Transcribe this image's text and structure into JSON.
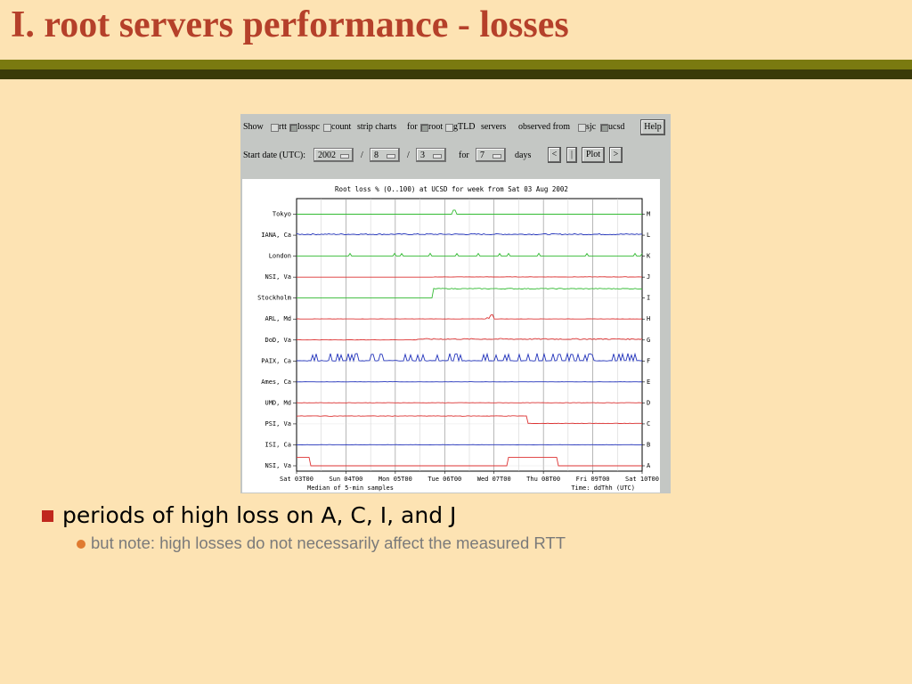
{
  "slide": {
    "title": "I. root servers performance - losses",
    "bullet1": "periods of high loss on A, C, I, and J",
    "bullet2": "but note: high losses do not necessarily affect the measured RTT"
  },
  "toolbar": {
    "show_label": "Show",
    "rtt_label": "rtt",
    "losspc_label": "losspc",
    "count_label": "count",
    "strip_label": "strip charts",
    "for_label": "for",
    "root_label": "root",
    "gtld_label": "gTLD",
    "servers_label": "servers",
    "observed_label": "observed from",
    "sjc_label": "sjc",
    "ucsd_label": "ucsd",
    "help_label": "Help",
    "start_label": "Start date (UTC):",
    "year": "2002",
    "slash1": "/",
    "month": "8",
    "slash2": "/",
    "day": "3",
    "for2_label": "for",
    "days_value": "7",
    "days_label": "days",
    "prev_label": "<",
    "mid_label": "|",
    "plot_label": "Plot",
    "next_label": ">",
    "checked": {
      "rtt": false,
      "losspc": true,
      "count": false,
      "root": true,
      "gtld": false,
      "sjc": false,
      "ucsd": true
    }
  },
  "chart_data": {
    "type": "line",
    "title": "Root loss % (0..100) at UCSD for week from Sat 03 Aug 2002",
    "xlabel_left": "Median of 5-min samples",
    "xlabel_right": "Time: ddThh (UTC)",
    "x_ticks": [
      "Sat 03T00",
      "Sun 04T00",
      "Mon 05T00",
      "Tue 06T00",
      "Wed 07T00",
      "Thu 08T00",
      "Fri 09T00",
      "Sat 10T00"
    ],
    "y_range_per_strip": [
      0,
      100
    ],
    "rows": [
      {
        "name": "Tokyo",
        "letter": "M",
        "color": "#33bb33"
      },
      {
        "name": "IANA, Ca",
        "letter": "L",
        "color": "#2233bb"
      },
      {
        "name": "London",
        "letter": "K",
        "color": "#33bb33"
      },
      {
        "name": "NSI, Va",
        "letter": "J",
        "color": "#dd3333"
      },
      {
        "name": "Stockholm",
        "letter": "I",
        "color": "#33bb33"
      },
      {
        "name": "ARL, Md",
        "letter": "H",
        "color": "#dd3333"
      },
      {
        "name": "DoD, Va",
        "letter": "G",
        "color": "#dd3333"
      },
      {
        "name": "PAIX, Ca",
        "letter": "F",
        "color": "#2233bb"
      },
      {
        "name": "Ames, Ca",
        "letter": "E",
        "color": "#2233bb"
      },
      {
        "name": "UMD, Md",
        "letter": "D",
        "color": "#dd3333"
      },
      {
        "name": "PSI, Va",
        "letter": "C",
        "color": "#dd3333"
      },
      {
        "name": "ISI, Ca",
        "letter": "B",
        "color": "#2233bb"
      },
      {
        "name": "NSI, Va",
        "letter": "A",
        "color": "#dd3333"
      }
    ],
    "grid": true
  }
}
